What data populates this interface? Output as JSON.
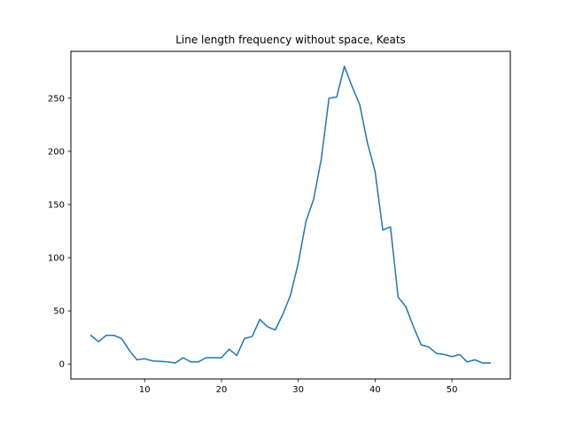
{
  "chart_data": {
    "type": "line",
    "title": "Line length frequency without space, Keats",
    "xlabel": "",
    "ylabel": "",
    "xlim": [
      0.4,
      57.6
    ],
    "ylim": [
      -14,
      294
    ],
    "xticks": [
      10,
      20,
      30,
      40,
      50
    ],
    "yticks": [
      0,
      50,
      100,
      150,
      200,
      250
    ],
    "grid": false,
    "series": [
      {
        "color": "#1f77b4",
        "x": [
          3,
          4,
          5,
          6,
          7,
          8,
          9,
          10,
          11,
          12,
          13,
          14,
          15,
          16,
          17,
          18,
          19,
          20,
          21,
          22,
          23,
          24,
          25,
          26,
          27,
          28,
          29,
          30,
          31,
          32,
          33,
          34,
          35,
          36,
          37,
          38,
          39,
          40,
          41,
          42,
          43,
          44,
          45,
          46,
          47,
          48,
          49,
          50,
          51,
          52,
          53,
          54,
          55
        ],
        "y": [
          27,
          21,
          27,
          27,
          24,
          13,
          4,
          5,
          3,
          2.5,
          2,
          1,
          6,
          2,
          2,
          6,
          6,
          6,
          14,
          8,
          24,
          26,
          42,
          35,
          32,
          47,
          65,
          95,
          134,
          155,
          193,
          250,
          251,
          280,
          261,
          244,
          208,
          181,
          126,
          129,
          63,
          54,
          35,
          18,
          16,
          10,
          9,
          7,
          9,
          2,
          4,
          1,
          1
        ]
      }
    ]
  }
}
